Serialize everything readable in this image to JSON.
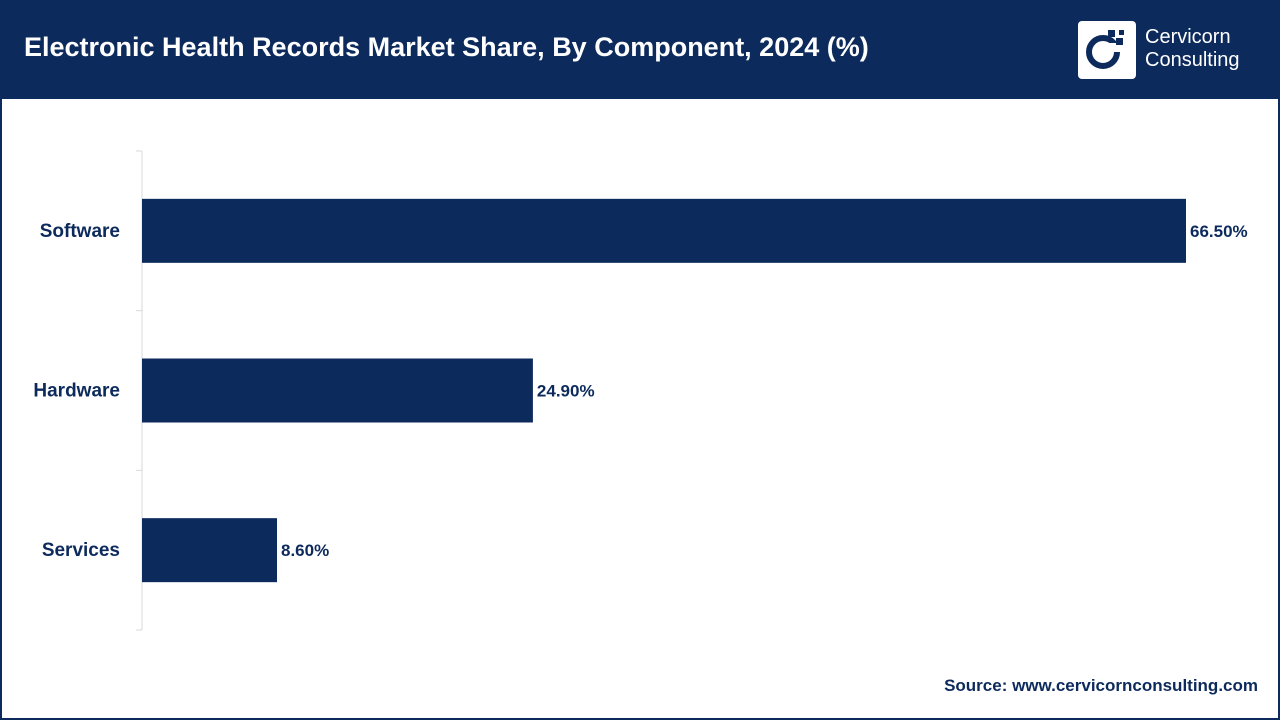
{
  "header": {
    "title": "Electronic Health Records Market Share, By Component, 2024 (%)",
    "logo_line1": "Cervicorn",
    "logo_line2": "Consulting"
  },
  "colors": {
    "brand": "#0d2a5c",
    "bar": "#0d2a5c",
    "axis": "#d9d9d9",
    "label": "#0d2a5c"
  },
  "chart_data": {
    "type": "bar",
    "orientation": "horizontal",
    "title": "Electronic Health Records Market Share, By Component, 2024 (%)",
    "categories": [
      "Software",
      "Hardware",
      "Services"
    ],
    "values": [
      66.5,
      24.9,
      8.6
    ],
    "value_labels": [
      "66.50%",
      "24.90%",
      "8.60%"
    ],
    "xlabel": "",
    "ylabel": "",
    "xlim": [
      0,
      66.5
    ],
    "grid": false,
    "legend": "none"
  },
  "footer": {
    "source": "Source: www.cervicornconsulting.com"
  }
}
